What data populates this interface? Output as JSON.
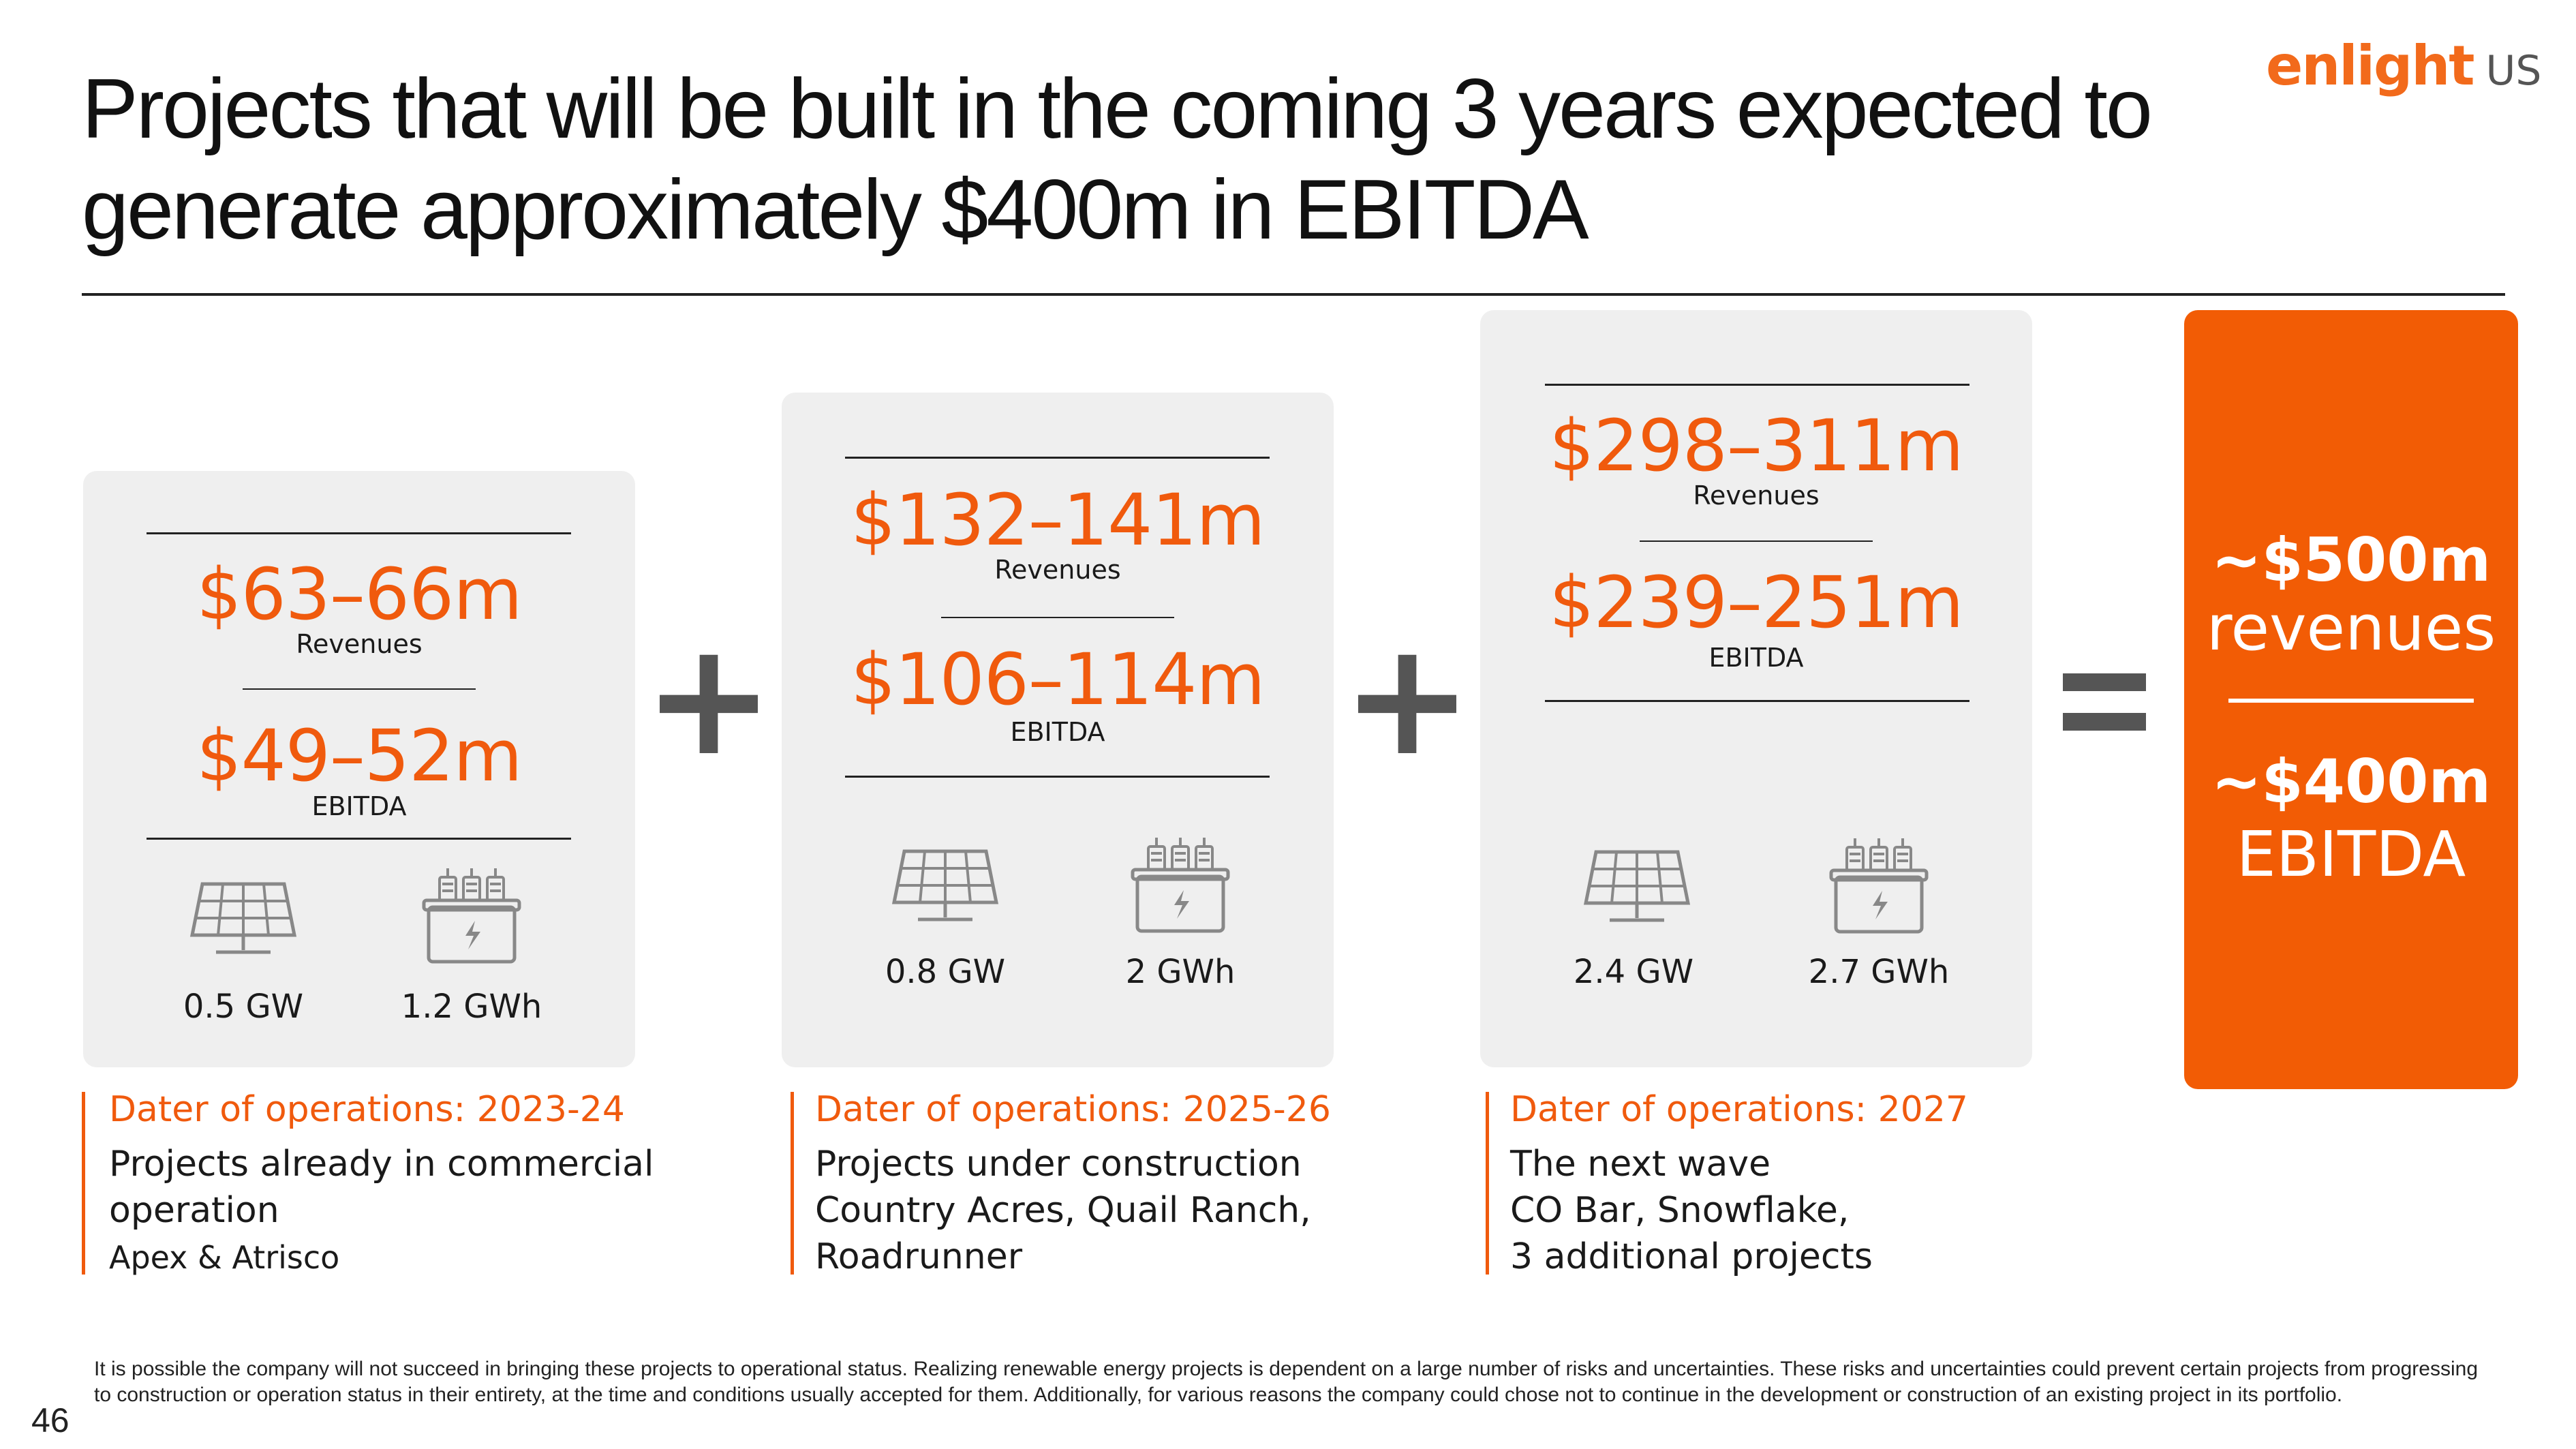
{
  "header": {
    "title_line1": "Projects that will be built in the coming 3 years expected to",
    "title_line2": "generate approximately $400m in EBITDA"
  },
  "logo": {
    "brand": "enlight",
    "suffix": "US",
    "brand_color": "#f26a1b"
  },
  "cards": [
    {
      "revenues_value": "$63–66m",
      "revenues_label": "Revenues",
      "ebitda_value": "$49–52m",
      "ebitda_label": "EBITDA",
      "solar_capacity": "0.5 GW",
      "storage_capacity": "1.2 GWh",
      "operations": "Dater of operations: 2023-24",
      "description_lines": [
        "Projects already in commercial",
        "operation"
      ],
      "projects": "Apex & Atrisco"
    },
    {
      "revenues_value": "$132–141m",
      "revenues_label": "Revenues",
      "ebitda_value": "$106–114m",
      "ebitda_label": "EBITDA",
      "solar_capacity": "0.8 GW",
      "storage_capacity": "2 GWh",
      "operations": "Dater of operations: 2025-26",
      "description_lines": [
        "Projects under construction",
        "Country Acres, Quail Ranch,",
        "Roadrunner"
      ]
    },
    {
      "revenues_value": "$298–311m",
      "revenues_label": "Revenues",
      "ebitda_value": "$239–251m",
      "ebitda_label": "EBITDA",
      "solar_capacity": "2.4 GW",
      "storage_capacity": "2.7 GWh",
      "operations": "Dater of operations: 2027",
      "description_lines": [
        "The next wave",
        "CO Bar, Snowflake,",
        "3 additional projects"
      ]
    }
  ],
  "operators": {
    "plus": "+"
  },
  "result": {
    "revenues_value": "~$500m",
    "revenues_label": "revenues",
    "ebitda_value": "~$400m",
    "ebitda_label": "EBITDA",
    "color": "#f25c05"
  },
  "footnote": {
    "line1": "It is possible the company will not succeed in bringing these projects to operational status. Realizing renewable energy projects is dependent on a large number of risks and uncertainties. These risks and uncertainties could prevent certain projects from progressing",
    "line2": "to construction or operation status in their entirety, at the time and conditions usually accepted for them. Additionally, for various reasons the company could chose not to continue in the development or construction of an existing project in its portfolio."
  },
  "page_number": "46",
  "colors": {
    "accent": "#f05a0d",
    "card_bg": "#efefef",
    "operator": "#555555"
  }
}
